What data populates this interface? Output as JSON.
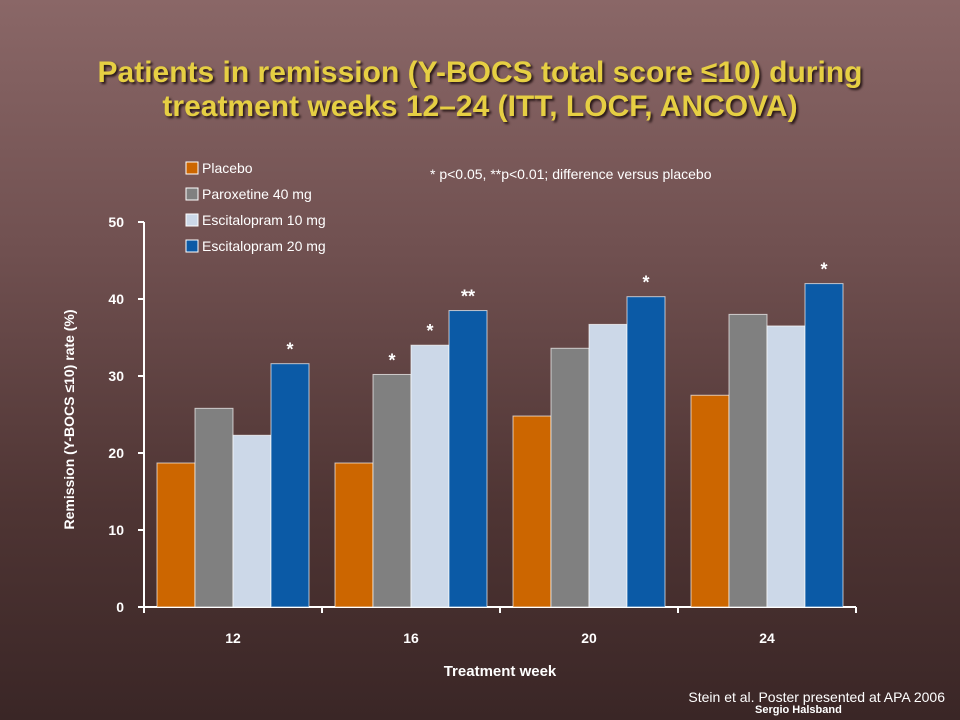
{
  "title": {
    "line1": "Patients in remission (Y-BOCS total score ≤10) during",
    "line2": "treatment weeks 12–24 (ITT, LOCF, ANCOVA)"
  },
  "footnote": "* p<0.05, **p<0.01; difference versus placebo",
  "credit": "Stein et al. Poster presented at APA 2006",
  "author": "Sergio Halsband",
  "chart_data": {
    "type": "bar",
    "xlabel": "Treatment week",
    "ylabel": "Remission (Y-BOCS ≤10) rate (%)",
    "ylim": [
      0,
      50
    ],
    "yticks": [
      0,
      10,
      20,
      30,
      40,
      50
    ],
    "categories": [
      "12",
      "16",
      "20",
      "24"
    ],
    "legend_position": "top-left",
    "grid": false,
    "series": [
      {
        "name": "Placebo",
        "color": "#cc6600",
        "values": [
          18.7,
          18.7,
          24.8,
          27.5
        ],
        "marks": [
          "",
          "",
          "",
          ""
        ]
      },
      {
        "name": "Paroxetine 40 mg",
        "color": "#808080",
        "values": [
          25.8,
          30.2,
          33.6,
          38.0
        ],
        "marks": [
          "",
          "*",
          "",
          ""
        ]
      },
      {
        "name": "Escitalopram 10 mg",
        "color": "#ccd8e8",
        "values": [
          22.3,
          34.0,
          36.7,
          36.5
        ],
        "marks": [
          "",
          "*",
          "",
          ""
        ]
      },
      {
        "name": "Escitalopram 20 mg",
        "color": "#0b5aa6",
        "values": [
          31.6,
          38.5,
          40.3,
          42.0
        ],
        "marks": [
          "*",
          "**",
          "*",
          "*"
        ]
      }
    ]
  }
}
